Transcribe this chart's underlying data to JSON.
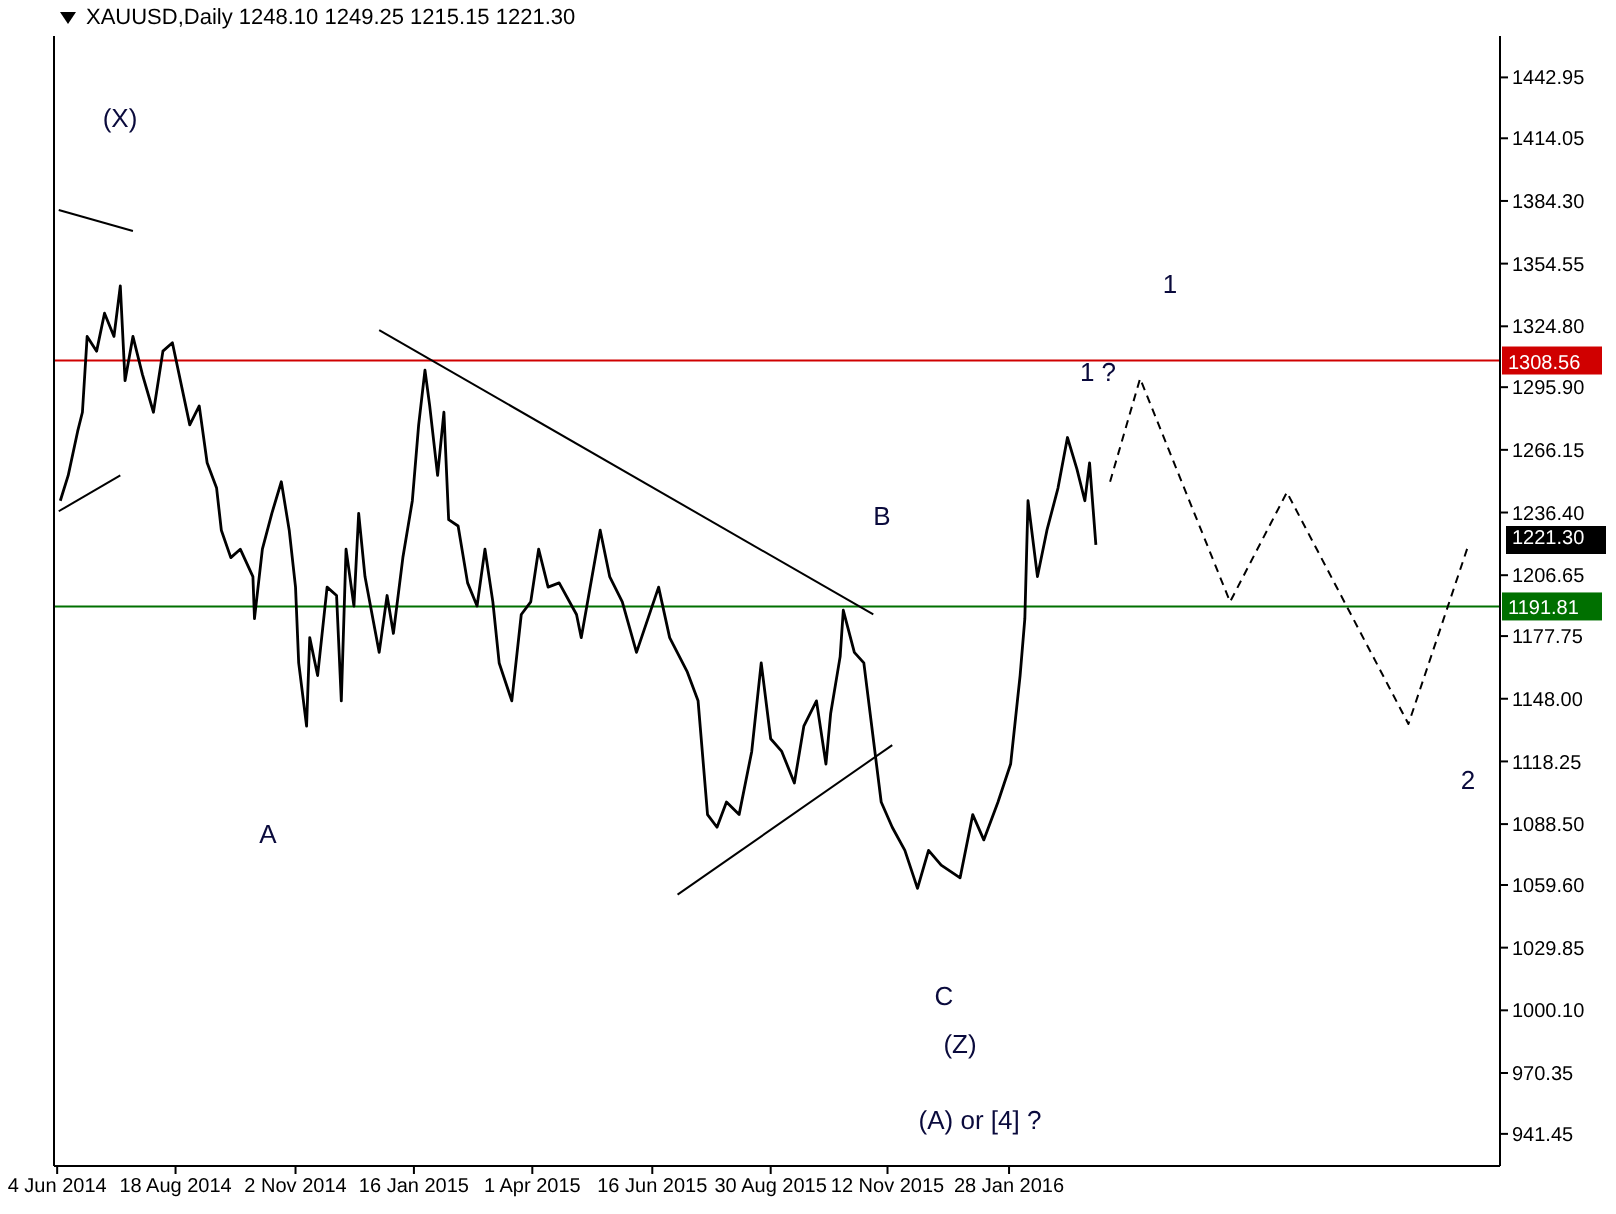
{
  "chart_data": {
    "type": "line",
    "title": "XAUUSD,Daily  1248.10 1249.25 1215.15 1221.30",
    "xlim": [
      "2014-06-02",
      "2016-12-04"
    ],
    "xticks": [
      {
        "value": "2014-06-04",
        "label": "4 Jun 2014"
      },
      {
        "value": "2014-08-18",
        "label": "18 Aug 2014"
      },
      {
        "value": "2014-11-02",
        "label": "2 Nov 2014"
      },
      {
        "value": "2015-01-16",
        "label": "16 Jan 2015"
      },
      {
        "value": "2015-04-01",
        "label": "1 Apr 2015"
      },
      {
        "value": "2015-06-16",
        "label": "16 Jun 2015"
      },
      {
        "value": "2015-08-30",
        "label": "30 Aug 2015"
      },
      {
        "value": "2015-11-12",
        "label": "12 Nov 2015"
      },
      {
        "value": "2016-01-28",
        "label": "28 Jan 2016"
      }
    ],
    "ylim": [
      926.2,
      1462.6
    ],
    "yticks": [
      {
        "value": 941.45,
        "label": "941.45"
      },
      {
        "value": 970.35,
        "label": "970.35"
      },
      {
        "value": 1000.1,
        "label": "1000.10"
      },
      {
        "value": 1029.85,
        "label": "1029.85"
      },
      {
        "value": 1059.6,
        "label": "1059.60"
      },
      {
        "value": 1088.5,
        "label": "1088.50"
      },
      {
        "value": 1118.25,
        "label": "1118.25"
      },
      {
        "value": 1148,
        "label": "1148.00"
      },
      {
        "value": 1177.75,
        "label": "1177.75"
      },
      {
        "value": 1206.65,
        "label": "1206.65"
      },
      {
        "value": 1236.4,
        "label": "1236.40"
      },
      {
        "value": 1266.15,
        "label": "1266.15"
      },
      {
        "value": 1295.9,
        "label": "1295.90"
      },
      {
        "value": 1324.8,
        "label": "1324.80"
      },
      {
        "value": 1354.55,
        "label": "1354.55"
      },
      {
        "value": 1384.3,
        "label": "1384.30"
      },
      {
        "value": 1414.05,
        "label": "1414.05"
      },
      {
        "value": 1442.95,
        "label": "1442.95"
      }
    ],
    "series": [
      {
        "color": "#000000",
        "x": [
          "2014-06-06",
          "2014-06-11",
          "2014-06-17",
          "2014-06-20",
          "2014-06-23",
          "2014-06-29",
          "2014-07-04",
          "2014-07-10",
          "2014-07-14",
          "2014-07-17",
          "2014-07-22",
          "2014-07-28",
          "2014-08-04",
          "2014-08-10",
          "2014-08-16",
          "2014-08-27",
          "2014-09-02",
          "2014-09-07",
          "2014-09-13",
          "2014-09-16",
          "2014-09-22",
          "2014-09-28",
          "2014-10-06",
          "2014-10-07",
          "2014-10-12",
          "2014-10-18",
          "2014-10-24",
          "2014-10-29",
          "2014-11-02",
          "2014-11-04",
          "2014-11-09",
          "2014-11-11",
          "2014-11-16",
          "2014-11-22",
          "2014-11-28",
          "2014-12-01",
          "2014-12-04",
          "2014-12-09",
          "2014-12-12",
          "2014-12-16",
          "2014-12-25",
          "2014-12-30",
          "2015-01-03",
          "2015-01-09",
          "2015-01-15",
          "2015-01-19",
          "2015-01-23",
          "2015-01-26",
          "2015-01-31",
          "2015-02-04",
          "2015-02-07",
          "2015-02-13",
          "2015-02-19",
          "2015-02-25",
          "2015-03-02",
          "2015-03-07",
          "2015-03-11",
          "2015-03-19",
          "2015-03-25",
          "2015-03-31",
          "2015-04-05",
          "2015-04-11",
          "2015-04-18",
          "2015-04-29",
          "2015-05-02",
          "2015-05-14",
          "2015-05-20",
          "2015-05-28",
          "2015-06-06",
          "2015-06-20",
          "2015-06-27",
          "2015-07-08",
          "2015-07-15",
          "2015-07-21",
          "2015-07-27",
          "2015-08-02",
          "2015-08-10",
          "2015-08-18",
          "2015-08-24",
          "2015-08-30",
          "2015-09-06",
          "2015-09-14",
          "2015-09-20",
          "2015-09-28",
          "2015-10-04",
          "2015-10-07",
          "2015-10-13",
          "2015-10-15",
          "2015-10-22",
          "2015-10-28",
          "2015-11-03",
          "2015-11-08",
          "2015-11-15",
          "2015-11-23",
          "2015-12-01",
          "2015-12-08",
          "2015-12-16",
          "2015-12-28",
          "2016-01-05",
          "2016-01-12",
          "2016-01-21",
          "2016-01-29",
          "2016-02-04",
          "2016-02-07",
          "2016-02-09",
          "2016-02-15",
          "2016-02-21",
          "2016-02-28",
          "2016-03-05",
          "2016-03-11",
          "2016-03-16",
          "2016-03-19",
          "2016-03-23"
        ],
        "values": [
          1242,
          1254,
          1275,
          1284,
          1320,
          1313,
          1331,
          1320,
          1344,
          1299,
          1320,
          1302,
          1284,
          1313,
          1317,
          1278,
          1287,
          1260,
          1248,
          1228,
          1215,
          1219,
          1206,
          1186,
          1219,
          1236,
          1251,
          1228,
          1201,
          1165,
          1135,
          1177,
          1159,
          1201,
          1197,
          1147,
          1219,
          1192,
          1236,
          1206,
          1170,
          1197,
          1179,
          1215,
          1242,
          1278,
          1304,
          1287,
          1254,
          1284,
          1233,
          1230,
          1203,
          1192,
          1219,
          1194,
          1165,
          1147,
          1188,
          1194,
          1219,
          1201,
          1203,
          1188,
          1177,
          1228,
          1206,
          1194,
          1170,
          1201,
          1177,
          1161,
          1147,
          1093,
          1087,
          1099,
          1093,
          1123,
          1165,
          1129,
          1123,
          1108,
          1135,
          1147,
          1117,
          1141,
          1168,
          1190,
          1170,
          1165,
          1129,
          1099,
          1087,
          1076,
          1058,
          1076,
          1069,
          1063,
          1093,
          1081,
          1099,
          1117,
          1159,
          1186,
          1242,
          1206,
          1228,
          1248,
          1272,
          1257,
          1242,
          1260,
          1221
        ]
      },
      {
        "color": "#000000",
        "line_style": "dashed",
        "x": [
          "2016-04-01",
          "2016-04-20",
          "2016-06-16",
          "2016-07-22",
          "2016-10-07",
          "2016-11-14"
        ],
        "values": [
          1251,
          1300,
          1194,
          1246,
          1136,
          1221
        ]
      },
      {
        "color": "#000000",
        "x": [
          "2014-06-05",
          "2014-07-22"
        ],
        "values": [
          1380,
          1370
        ]
      },
      {
        "color": "#000000",
        "x": [
          "2014-06-05",
          "2014-07-14"
        ],
        "values": [
          1237,
          1254
        ]
      },
      {
        "color": "#000000",
        "x": [
          "2014-12-25",
          "2015-11-03"
        ],
        "values": [
          1323,
          1188
        ]
      },
      {
        "color": "#000000",
        "x": [
          "2015-07-02",
          "2015-11-15"
        ],
        "values": [
          1055,
          1126
        ]
      }
    ],
    "ref_lines": [
      {
        "axis": "y",
        "value": 1308.56,
        "label": "1308.56",
        "color": "#d00000"
      },
      {
        "axis": "y",
        "value": 1191.81,
        "label": "1191.81",
        "color": "#007000"
      }
    ],
    "annotations": [
      "1221.30",
      "(X)",
      "A",
      "B",
      "C",
      "(Z)",
      "(A) or [4] ?",
      "1 ?",
      "1",
      "2"
    ]
  }
}
